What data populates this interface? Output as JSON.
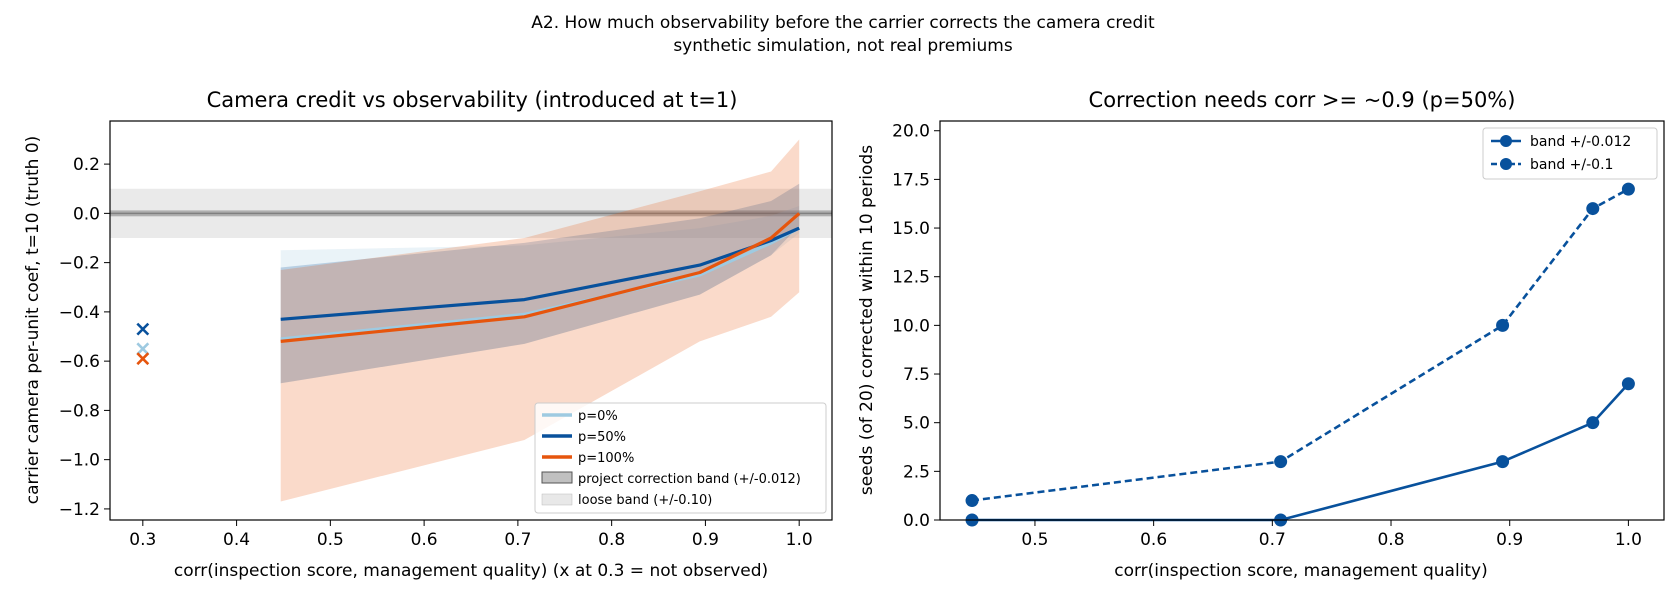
{
  "figure": {
    "suptitle": "A2. How much observability before the carrier corrects the camera credit",
    "subtitle": "synthetic simulation, not real premiums"
  },
  "colors": {
    "p0": "#9ecae1",
    "p50": "#08519c",
    "p100": "#e6550d",
    "band_tight": "#969696",
    "band_loose": "#d9d9d9",
    "truth_line": "#808080"
  },
  "chart_data": [
    {
      "type": "line",
      "title": "Camera credit vs observability (introduced at t=1)",
      "xlabel": "corr(inspection score, management quality)  (x at 0.3 = not observed)",
      "ylabel": "carrier camera per-unit coef, t=10 (truth 0)",
      "xlim": [
        0.265,
        1.035
      ],
      "ylim": [
        -1.245,
        0.375
      ],
      "xticks": [
        0.3,
        0.4,
        0.5,
        0.6,
        0.7,
        0.8,
        0.9,
        1.0
      ],
      "xtick_labels": [
        "0.3",
        "0.4",
        "0.5",
        "0.6",
        "0.7",
        "0.8",
        "0.9",
        "1.0"
      ],
      "yticks": [
        0.2,
        0.0,
        -0.2,
        -0.4,
        -0.6,
        -0.8,
        -1.0,
        -1.2
      ],
      "ytick_labels": [
        "0.2",
        "0.0",
        "−0.2",
        "−0.4",
        "−0.6",
        "−0.8",
        "−1.0",
        "−1.2"
      ],
      "grid": false,
      "legend_loc": "lower right",
      "truth_value": 0.0,
      "correction_band": 0.012,
      "loose_band": 0.1,
      "x": [
        0.447,
        0.707,
        0.894,
        0.97,
        1.0
      ],
      "series": [
        {
          "key": "p0",
          "name": "p=0%",
          "values": [
            -0.51,
            -0.41,
            -0.25,
            -0.12,
            -0.06
          ],
          "lower": [
            -0.69,
            -0.53,
            -0.33,
            -0.17,
            -0.08
          ],
          "upper": [
            -0.15,
            -0.13,
            -0.06,
            -0.01,
            0.03
          ],
          "not_observed_x": 0.3,
          "not_observed": -0.55
        },
        {
          "key": "p50",
          "name": "p=50%",
          "values": [
            -0.43,
            -0.35,
            -0.21,
            -0.11,
            -0.06
          ],
          "lower": [
            -0.69,
            -0.53,
            -0.33,
            -0.17,
            -0.05
          ],
          "upper": [
            -0.22,
            -0.12,
            -0.02,
            0.05,
            0.12
          ],
          "not_observed_x": 0.3,
          "not_observed": -0.47
        },
        {
          "key": "p100",
          "name": "p=100%",
          "values": [
            -0.52,
            -0.42,
            -0.24,
            -0.1,
            0.0
          ],
          "lower": [
            -1.17,
            -0.92,
            -0.52,
            -0.42,
            -0.32
          ],
          "upper": [
            -0.23,
            -0.1,
            0.09,
            0.17,
            0.3
          ],
          "not_observed_x": 0.3,
          "not_observed": -0.59
        }
      ],
      "legend": [
        {
          "key": "p0",
          "label": "p=0%",
          "kind": "line"
        },
        {
          "key": "p50",
          "label": "p=50%",
          "kind": "line"
        },
        {
          "key": "p100",
          "label": "p=100%",
          "kind": "line"
        },
        {
          "key": "band_tight",
          "label": "project correction band (+/-0.012)",
          "kind": "patch"
        },
        {
          "key": "band_loose",
          "label": "loose band (+/-0.10)",
          "kind": "patch"
        }
      ]
    },
    {
      "type": "line",
      "title": "Correction needs corr >= ~0.9 (p=50%)",
      "xlabel": "corr(inspection score, management quality)",
      "ylabel": "seeds (of 20) corrected within 10 periods",
      "xlim": [
        0.42,
        1.03
      ],
      "ylim": [
        0.0,
        20.5
      ],
      "xticks": [
        0.5,
        0.6,
        0.7,
        0.8,
        0.9,
        1.0
      ],
      "xtick_labels": [
        "0.5",
        "0.6",
        "0.7",
        "0.8",
        "0.9",
        "1.0"
      ],
      "yticks": [
        0.0,
        2.5,
        5.0,
        7.5,
        10.0,
        12.5,
        15.0,
        17.5,
        20.0
      ],
      "ytick_labels": [
        "0.0",
        "2.5",
        "5.0",
        "7.5",
        "10.0",
        "12.5",
        "15.0",
        "17.5",
        "20.0"
      ],
      "grid": false,
      "legend_loc": "upper right",
      "x": [
        0.447,
        0.707,
        0.894,
        0.97,
        1.0
      ],
      "series": [
        {
          "name": "band +/-0.012",
          "style": "solid",
          "values": [
            0,
            0,
            3,
            5,
            7
          ]
        },
        {
          "name": "band +/-0.1",
          "style": "dashed",
          "values": [
            1,
            3,
            10,
            16,
            17
          ]
        }
      ]
    }
  ]
}
